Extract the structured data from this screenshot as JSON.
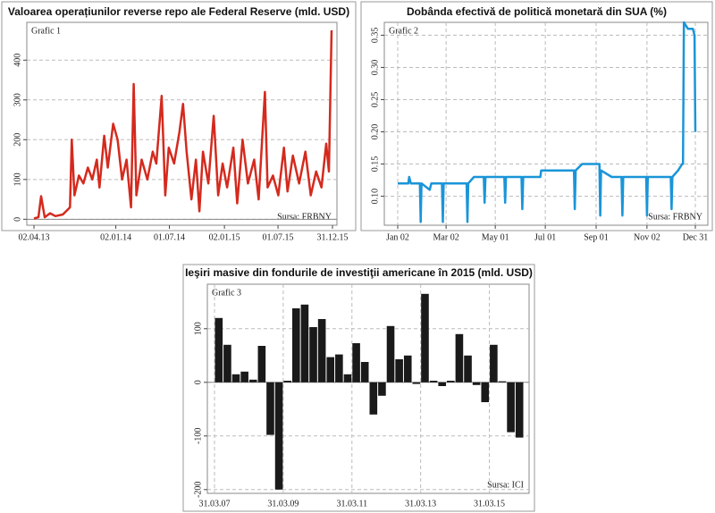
{
  "chart_data": [
    {
      "type": "line",
      "title": "Valoarea operațiunilor reverse repo ale Federal Reserve (mld. USD)",
      "annotations": [
        "Grafic 1",
        "Sursa: FRBNY"
      ],
      "grid": "y",
      "xlim": [
        "02.04.13",
        "31.12.15"
      ],
      "xticks": [
        "02.04.13",
        "02.01.14",
        "01.07.14",
        "02.01.15",
        "01.07.15",
        "31.12.15"
      ],
      "ylim": [
        -15,
        495
      ],
      "yticks": [
        0,
        100,
        200,
        300,
        400
      ],
      "x": [
        "02.04.13",
        "17.04.13",
        "26.04.13",
        "08.05.13",
        "26.05.13",
        "13.06.13",
        "08.07.13",
        "01.08.13",
        "07.08.13",
        "16.08.13",
        "31.08.13",
        "15.09.13",
        "30.09.13",
        "15.10.13",
        "30.10.13",
        "08.11.13",
        "24.11.13",
        "06.12.13",
        "24.12.13",
        "08.01.14",
        "23.01.14",
        "07.02.14",
        "22.02.14",
        "03.03.14",
        "12.03.14",
        "30.03.14",
        "18.04.14",
        "06.05.14",
        "18.05.14",
        "05.06.14",
        "17.06.14",
        "29.06.14",
        "17.07.14",
        "04.08.14",
        "16.08.14",
        "28.08.14",
        "13.09.14",
        "28.09.14",
        "10.10.14",
        "22.10.14",
        "09.11.14",
        "27.11.14",
        "12.12.14",
        "27.12.14",
        "11.01.15",
        "01.02.15",
        "14.02.15",
        "04.03.15",
        "22.03.15",
        "12.04.15",
        "27.04.15",
        "18.05.15",
        "27.05.15",
        "14.06.15",
        "02.07.15",
        "21.07.15",
        "02.08.15",
        "20.08.15",
        "10.09.15",
        "01.10.15",
        "19.10.15",
        "06.11.15",
        "24.11.15",
        "10.12.15",
        "19.12.15",
        "28.12.15"
      ],
      "series": [
        {
          "color": "#d42a1e",
          "values": [
            2,
            5,
            58,
            5,
            15,
            8,
            12,
            30,
            200,
            60,
            110,
            90,
            130,
            100,
            150,
            80,
            210,
            130,
            240,
            200,
            100,
            150,
            30,
            340,
            60,
            150,
            100,
            170,
            140,
            310,
            60,
            180,
            140,
            220,
            290,
            170,
            50,
            150,
            20,
            170,
            90,
            260,
            60,
            140,
            80,
            180,
            40,
            200,
            90,
            150,
            50,
            320,
            80,
            110,
            60,
            180,
            70,
            160,
            90,
            170,
            60,
            120,
            80,
            190,
            120,
            475
          ]
        }
      ]
    },
    {
      "type": "line",
      "title": "Dobânda efectivă de politică monetară din SUA (%)",
      "annotations": [
        "Grafic 2",
        "Sursa: FRBNY"
      ],
      "grid": "both",
      "xlim": [
        "Jan 02",
        "Dec 31"
      ],
      "xticks": [
        "Jan 02",
        "Mar 02",
        "May 01",
        "Jul 01",
        "Sep 01",
        "Nov 02",
        "Dec 31"
      ],
      "ylim": [
        0.055,
        0.37
      ],
      "yticks": [
        {
          "value": 0.1,
          "label": "0.10"
        },
        {
          "value": 0.15,
          "label": "0.15"
        },
        {
          "value": 0.2,
          "label": "0.20"
        },
        {
          "value": 0.25,
          "label": "0.25"
        },
        {
          "value": 0.3,
          "label": "0.30"
        },
        {
          "value": 0.35,
          "label": "0.35"
        }
      ],
      "x": [
        "Jan 02",
        "Jan 15",
        "Jan 16",
        "Jan 18",
        "Jan 29",
        "Jan 30",
        "Jan 31",
        "Feb 10",
        "Feb 12",
        "Feb 25",
        "Feb 26",
        "Feb 27",
        "Mar 27",
        "Mar 28",
        "Mar 29",
        "Apr 05",
        "Apr 17",
        "Apr 18",
        "Apr 19",
        "May 12",
        "May 13",
        "May 14",
        "Jun 02",
        "Jun 03",
        "Jun 04",
        "Jun 25",
        "Jun 26",
        "Aug 05",
        "Aug 06",
        "Aug 07",
        "Aug 15",
        "Sep 05",
        "Sep 06",
        "Sep 07",
        "Sep 20",
        "Oct 02",
        "Oct 03",
        "Oct 04",
        "Nov 01",
        "Nov 02",
        "Nov 03",
        "Dec 01",
        "Dec 02",
        "Dec 03",
        "Dec 10",
        "Dec 15",
        "Dec 16",
        "Dec 17",
        "Dec 22",
        "Dec 28",
        "Dec 30",
        "Dec 31"
      ],
      "series": [
        {
          "color": "#1a95d8",
          "values": [
            0.12,
            0.12,
            0.13,
            0.12,
            0.12,
            0.06,
            0.12,
            0.11,
            0.12,
            0.12,
            0.06,
            0.12,
            0.12,
            0.06,
            0.12,
            0.13,
            0.13,
            0.09,
            0.13,
            0.13,
            0.09,
            0.13,
            0.13,
            0.08,
            0.13,
            0.13,
            0.14,
            0.14,
            0.08,
            0.14,
            0.15,
            0.15,
            0.07,
            0.14,
            0.13,
            0.13,
            0.07,
            0.13,
            0.13,
            0.07,
            0.13,
            0.13,
            0.08,
            0.13,
            0.14,
            0.15,
            0.15,
            0.37,
            0.36,
            0.36,
            0.35,
            0.2
          ]
        }
      ]
    },
    {
      "type": "bar",
      "title": "Ieşiri masive din fondurile de investiţii americane în 2015 (mld. USD)",
      "annotations": [
        "Grafic 3",
        "Sursa: ICI"
      ],
      "grid": "both",
      "color": "#1a1a1a",
      "categories": [
        "31.03.07",
        null,
        null,
        null,
        null,
        null,
        null,
        null,
        "31.03.09",
        null,
        null,
        null,
        null,
        null,
        null,
        null,
        "31.03.11",
        null,
        null,
        null,
        null,
        null,
        null,
        null,
        "31.03.13",
        null,
        null,
        null,
        null,
        null,
        null,
        null,
        "31.03.15",
        null,
        null,
        null
      ],
      "ylim": [
        -207,
        183
      ],
      "yticks": [
        -200,
        -100,
        0,
        100
      ],
      "values": [
        120,
        70,
        15,
        20,
        5,
        68,
        -98,
        -200,
        3,
        138,
        145,
        103,
        118,
        47,
        52,
        15,
        73,
        38,
        -60,
        -25,
        105,
        43,
        50,
        -3,
        165,
        3,
        -7,
        3,
        90,
        50,
        -5,
        -37,
        70,
        2,
        -93,
        -103
      ]
    }
  ]
}
